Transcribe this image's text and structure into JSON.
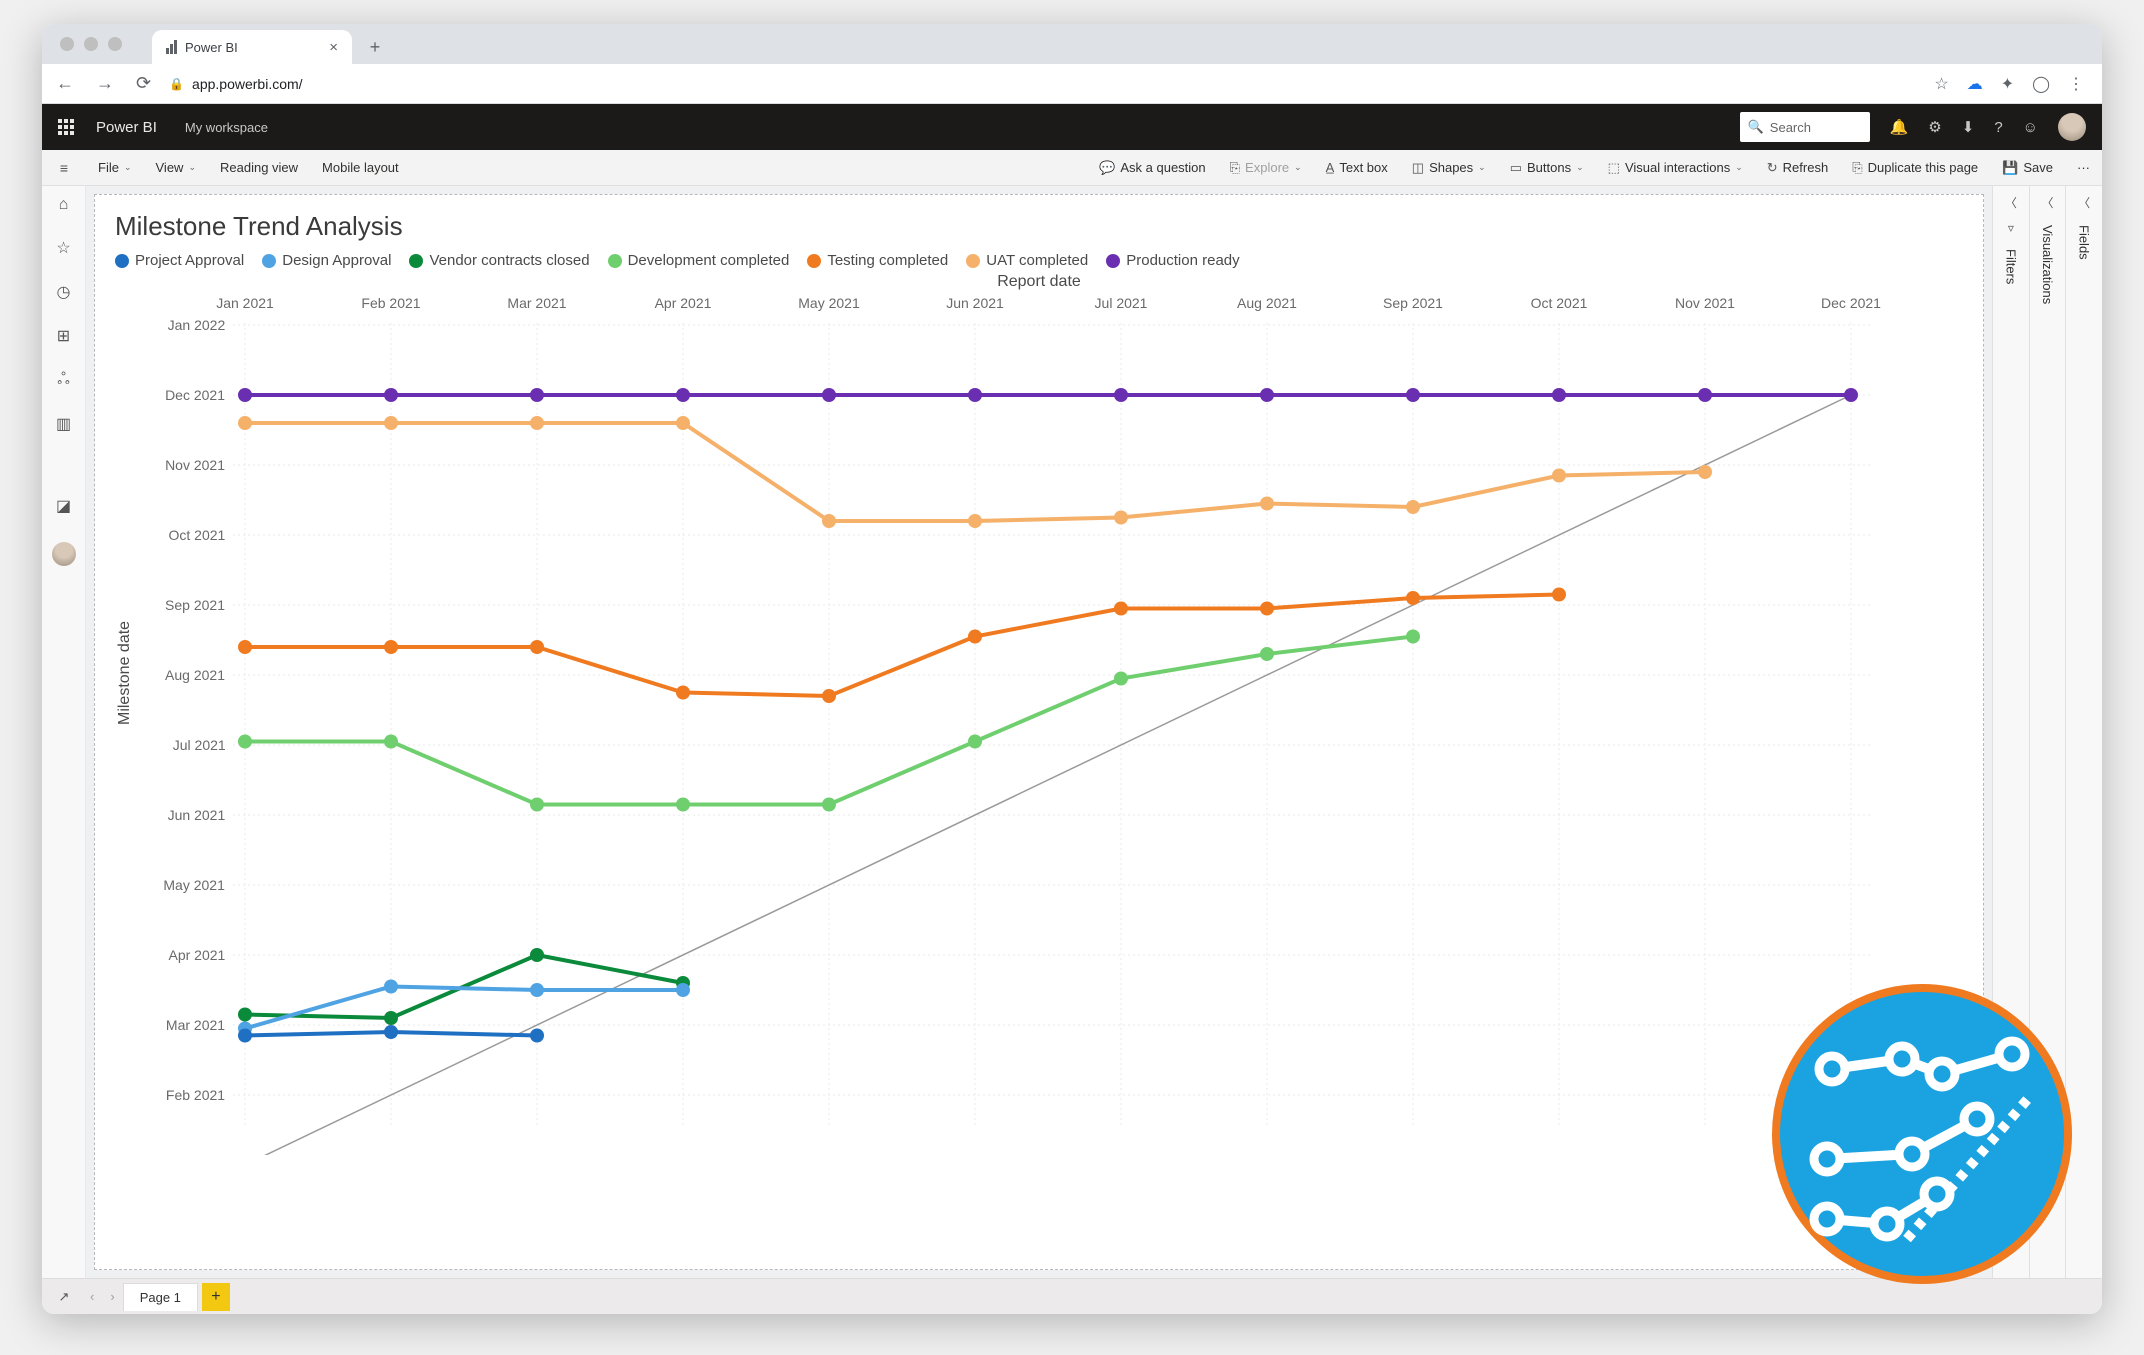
{
  "browser": {
    "tab_title": "Power BI",
    "url": "app.powerbi.com/"
  },
  "header": {
    "brand": "Power BI",
    "workspace": "My workspace",
    "search_placeholder": "Search"
  },
  "toolbar": {
    "file": "File",
    "view": "View",
    "reading_view": "Reading view",
    "mobile_layout": "Mobile layout",
    "ask": "Ask a question",
    "explore": "Explore",
    "textbox": "Text box",
    "shapes": "Shapes",
    "buttons": "Buttons",
    "visual_interactions": "Visual interactions",
    "refresh": "Refresh",
    "duplicate": "Duplicate this page",
    "save": "Save"
  },
  "panes": {
    "filters": "Filters",
    "visualizations": "Visualizations",
    "fields": "Fields"
  },
  "pages": {
    "page1": "Page 1"
  },
  "chart": {
    "title": "Milestone Trend Analysis",
    "x_axis_label": "Report date",
    "y_axis_label": "Milestone date",
    "legend": [
      {
        "label": "Project Approval",
        "color": "#1f6fc2"
      },
      {
        "label": "Design Approval",
        "color": "#4fa3e3"
      },
      {
        "label": "Vendor contracts closed",
        "color": "#0a8a3a"
      },
      {
        "label": "Development completed",
        "color": "#6fcf6f"
      },
      {
        "label": "Testing completed",
        "color": "#f07a1f"
      },
      {
        "label": "UAT completed",
        "color": "#f5b06a"
      },
      {
        "label": "Production ready",
        "color": "#6a2fb0"
      }
    ],
    "x_ticks": [
      "Jan 2021",
      "Feb 2021",
      "Mar 2021",
      "Apr 2021",
      "May 2021",
      "Jun 2021",
      "Jul 2021",
      "Aug 2021",
      "Sep 2021",
      "Oct 2021",
      "Nov 2021",
      "Dec 2021"
    ],
    "y_ticks": [
      "Feb 2021",
      "Mar 2021",
      "Apr 2021",
      "May 2021",
      "Jun 2021",
      "Jul 2021",
      "Aug 2021",
      "Sep 2021",
      "Oct 2021",
      "Nov 2021",
      "Dec 2021",
      "Jan 2022"
    ],
    "plot": {
      "x_origin": 120,
      "x_step": 146,
      "y_origin": 800,
      "y_step": 70,
      "grid_color": "#e8e8e8",
      "diagonal_color": "#9a9a9a",
      "marker_radius": 7,
      "line_width": 4
    },
    "series": [
      {
        "name": "Production ready",
        "color": "#6a2fb0",
        "y": [
          10,
          10,
          10,
          10,
          10,
          10,
          10,
          10,
          10,
          10,
          10,
          10
        ]
      },
      {
        "name": "UAT completed",
        "color": "#f5b06a",
        "y": [
          9.6,
          9.6,
          9.6,
          9.6,
          8.2,
          8.2,
          8.25,
          8.45,
          8.4,
          8.85,
          8.9,
          null
        ]
      },
      {
        "name": "Testing completed",
        "color": "#f07a1f",
        "y": [
          6.4,
          6.4,
          6.4,
          5.75,
          5.7,
          6.55,
          6.95,
          6.95,
          7.1,
          7.15,
          null,
          null
        ]
      },
      {
        "name": "Development completed",
        "color": "#6fcf6f",
        "y": [
          5.05,
          5.05,
          4.15,
          4.15,
          4.15,
          5.05,
          5.95,
          6.3,
          6.55,
          null,
          null,
          null
        ]
      },
      {
        "name": "Vendor contracts closed",
        "color": "#0a8a3a",
        "y": [
          1.15,
          1.1,
          2.0,
          1.6,
          null,
          null,
          null,
          null,
          null,
          null,
          null,
          null
        ]
      },
      {
        "name": "Design Approval",
        "color": "#4fa3e3",
        "y": [
          0.95,
          1.55,
          1.5,
          1.5,
          null,
          null,
          null,
          null,
          null,
          null,
          null,
          null
        ]
      },
      {
        "name": "Project Approval",
        "color": "#1f6fc2",
        "y": [
          0.85,
          0.9,
          0.85,
          null,
          null,
          null,
          null,
          null,
          null,
          null,
          null,
          null
        ]
      }
    ]
  }
}
